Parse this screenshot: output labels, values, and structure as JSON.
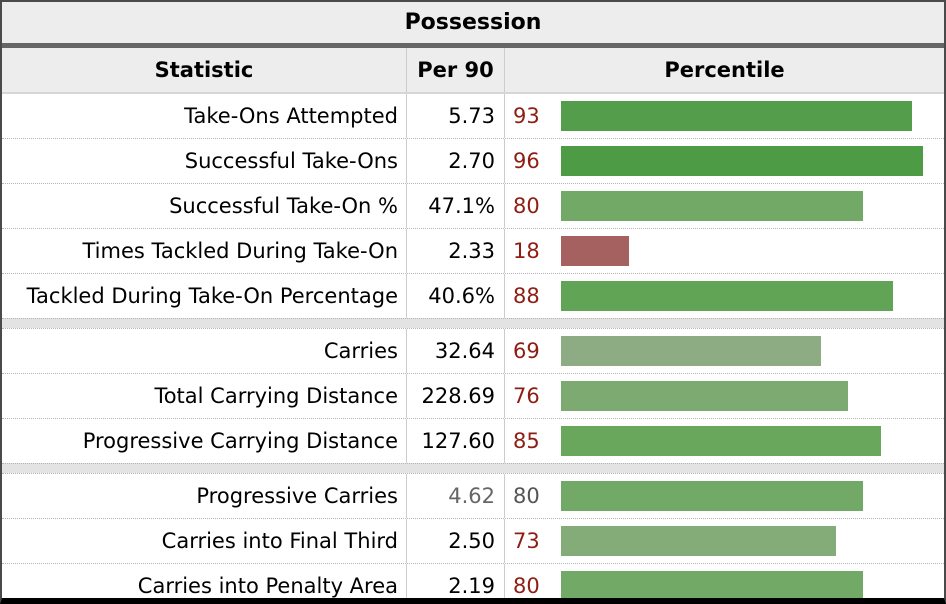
{
  "table": {
    "title": "Possession",
    "columns": [
      "Statistic",
      "Per 90",
      "Percentile"
    ],
    "groups": [
      {
        "rows": [
          {
            "stat": "Take-Ons Attempted",
            "per90": "5.73",
            "percentile": 93,
            "bar_color": "#549d4a",
            "muted": false
          },
          {
            "stat": "Successful Take-Ons",
            "per90": "2.70",
            "percentile": 96,
            "bar_color": "#4e9b45",
            "muted": false
          },
          {
            "stat": "Successful Take-On %",
            "per90": "47.1%",
            "percentile": 80,
            "bar_color": "#73a967",
            "muted": false
          },
          {
            "stat": "Times Tackled During Take-On",
            "per90": "2.33",
            "percentile": 18,
            "bar_color": "#a56060",
            "muted": false
          },
          {
            "stat": "Tackled During Take-On Percentage",
            "per90": "40.6%",
            "percentile": 88,
            "bar_color": "#61a455",
            "muted": false
          }
        ]
      },
      {
        "rows": [
          {
            "stat": "Carries",
            "per90": "32.64",
            "percentile": 69,
            "bar_color": "#8dac83",
            "muted": false
          },
          {
            "stat": "Total Carrying Distance",
            "per90": "228.69",
            "percentile": 76,
            "bar_color": "#7daa70",
            "muted": false
          },
          {
            "stat": "Progressive Carrying Distance",
            "per90": "127.60",
            "percentile": 85,
            "bar_color": "#69a75d",
            "muted": false
          }
        ]
      },
      {
        "rows": [
          {
            "stat": "Progressive Carries",
            "per90": "4.62",
            "percentile": 80,
            "bar_color": "#72a966",
            "muted": true
          },
          {
            "stat": "Carries into Final Third",
            "per90": "2.50",
            "percentile": 73,
            "bar_color": "#84ac79",
            "muted": false
          },
          {
            "stat": "Carries into Penalty Area",
            "per90": "2.19",
            "percentile": 80,
            "bar_color": "#72a966",
            "muted": false
          }
        ]
      }
    ],
    "colors": {
      "percentile_number": "#8e1d12",
      "muted_text": "#666666",
      "header_background": "#ededed",
      "negative_bar": "#a56060",
      "positive_bar_strong": "#4e9b45"
    }
  },
  "chart_data": {
    "type": "table",
    "title": "Possession",
    "columns": [
      "Statistic",
      "Per 90",
      "Percentile"
    ],
    "rows": [
      {
        "statistic": "Take-Ons Attempted",
        "per_90": "5.73",
        "percentile": 93
      },
      {
        "statistic": "Successful Take-Ons",
        "per_90": "2.70",
        "percentile": 96
      },
      {
        "statistic": "Successful Take-On %",
        "per_90": "47.1%",
        "percentile": 80
      },
      {
        "statistic": "Times Tackled During Take-On",
        "per_90": "2.33",
        "percentile": 18
      },
      {
        "statistic": "Tackled During Take-On Percentage",
        "per_90": "40.6%",
        "percentile": 88
      },
      {
        "statistic": "Carries",
        "per_90": "32.64",
        "percentile": 69
      },
      {
        "statistic": "Total Carrying Distance",
        "per_90": "228.69",
        "percentile": 76
      },
      {
        "statistic": "Progressive Carrying Distance",
        "per_90": "127.60",
        "percentile": 85
      },
      {
        "statistic": "Progressive Carries",
        "per_90": "4.62",
        "percentile": 80
      },
      {
        "statistic": "Carries into Final Third",
        "per_90": "2.50",
        "percentile": 73
      },
      {
        "statistic": "Carries into Penalty Area",
        "per_90": "2.19",
        "percentile": 80
      }
    ],
    "bar_axis_range": [
      0,
      100
    ],
    "bar_encoding": "bar width proportional to percentile (0-100)",
    "grouping": [
      [
        "rows 1-5 take-ons"
      ],
      [
        "rows 6-8 carrying distance"
      ],
      [
        "rows 9-11 progressive carries"
      ]
    ]
  }
}
